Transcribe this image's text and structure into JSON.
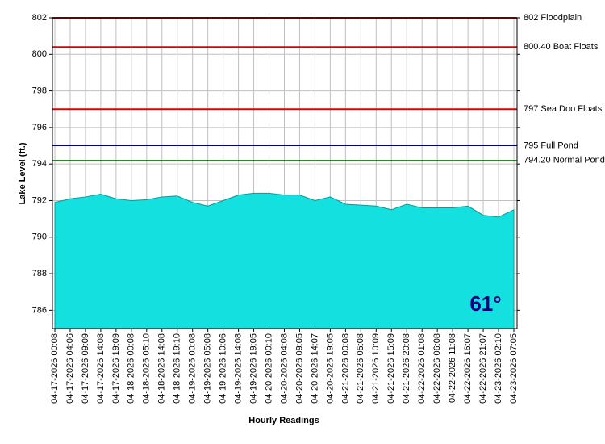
{
  "chart_data": {
    "type": "area",
    "y_label": "Lake Level (ft.)",
    "x_label": "Hourly Readings",
    "categories": [
      "04-17-2026 00:08",
      "04-17-2026 04:06",
      "04-17-2026 09:09",
      "04-17-2026 14:08",
      "04-17-2026 19:09",
      "04-18-2026 00:08",
      "04-18-2026 05:10",
      "04-18-2026 14:08",
      "04-18-2026 19:10",
      "04-19-2026 00:08",
      "04-19-2026 05:08",
      "04-19-2026 10:06",
      "04-19-2026 14:08",
      "04-19-2026 19:05",
      "04-20-2026 00:10",
      "04-20-2026 04:08",
      "04-20-2026 09:05",
      "04-20-2026 14:07",
      "04-20-2026 19:05",
      "04-21-2026 00:08",
      "04-21-2026 05:08",
      "04-21-2026 10:09",
      "04-21-2026 15:09",
      "04-21-2026 20:08",
      "04-22-2026 01:08",
      "04-22-2026 06:08",
      "04-22-2026 11:08",
      "04-22-2026 16:07",
      "04-22-2026 21:07",
      "04-23-2026 02:10",
      "04-23-2026 07:05"
    ],
    "series": [
      {
        "color": "#14e0e0",
        "values": [
          791.9,
          792.1,
          792.2,
          792.35,
          792.1,
          792.0,
          792.05,
          792.2,
          792.25,
          791.9,
          791.7,
          792.0,
          792.3,
          792.4,
          792.4,
          792.3,
          792.3,
          792.0,
          792.2,
          791.8,
          791.75,
          791.7,
          791.5,
          791.8,
          791.6,
          791.6,
          791.6,
          791.7,
          791.2,
          791.1,
          791.5
        ]
      }
    ],
    "ylim": [
      785,
      802
    ],
    "yticks": [
      786,
      788,
      790,
      792,
      794,
      796,
      798,
      800,
      802
    ],
    "grid": true,
    "reference_lines": [
      {
        "value": 802,
        "label": "802 Floodplain",
        "color": "#e00000"
      },
      {
        "value": 800.4,
        "label": "800.40 Boat Floats",
        "color": "#e00000"
      },
      {
        "value": 797,
        "label": "797 Sea Doo Floats",
        "color": "#e00000"
      },
      {
        "value": 795,
        "label": "795 Full Pond",
        "color": "#000080"
      },
      {
        "value": 794.2,
        "label": "794.20 Normal Pond",
        "color": "#008000"
      }
    ],
    "badge": "61°"
  }
}
